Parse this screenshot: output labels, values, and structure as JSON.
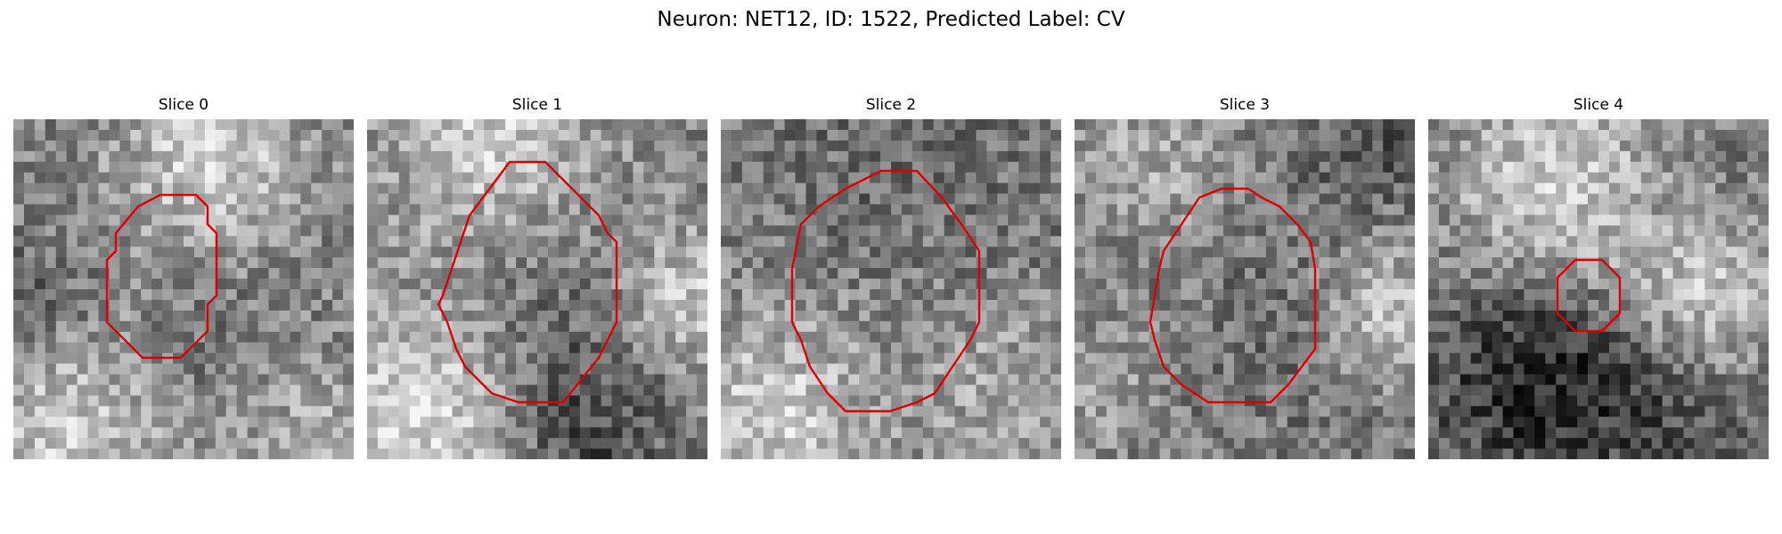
{
  "figure": {
    "title": "Neuron: NET12, ID: 1522, Predicted Label: CV"
  },
  "slices": [
    {
      "title": "Slice 0",
      "contour_color": "#e00000"
    },
    {
      "title": "Slice 1",
      "contour_color": "#e00000"
    },
    {
      "title": "Slice 2",
      "contour_color": "#e00000"
    },
    {
      "title": "Slice 3",
      "contour_color": "#e00000"
    },
    {
      "title": "Slice 4",
      "contour_color": "#e00000"
    }
  ],
  "colors": {
    "contour": "#e00000",
    "background": "#ffffff"
  }
}
